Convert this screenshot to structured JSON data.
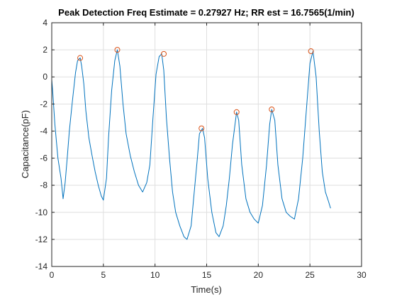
{
  "colors": {
    "line": "#0072BD",
    "peak_marker": "#D95319",
    "grid": "#dfdfdf",
    "axes": "#262626",
    "background": "#ffffff"
  },
  "chart_data": {
    "type": "line",
    "title": "Peak Detection Freq Estimate = 0.27927 Hz; RR est = 16.7565(1/min)",
    "xlabel": "Time(s)",
    "ylabel": "Capacitance(pF)",
    "xlim": [
      0,
      30
    ],
    "ylim": [
      -14,
      4
    ],
    "x_ticks": [
      0,
      5,
      10,
      15,
      20,
      25,
      30
    ],
    "y_ticks": [
      -14,
      -12,
      -10,
      -8,
      -6,
      -4,
      -2,
      0,
      2,
      4
    ],
    "grid": true,
    "legend": "none",
    "series": [
      {
        "marker": "line",
        "x": [
          0,
          0.1,
          0.3,
          0.6,
          0.9,
          1.1,
          1.3,
          1.5,
          1.7,
          2.0,
          2.3,
          2.5,
          2.75,
          2.9,
          3.1,
          3.3,
          3.6,
          3.9,
          4.2,
          4.5,
          4.8,
          5.0,
          5.3,
          5.5,
          5.8,
          6.1,
          6.35,
          6.6,
          6.9,
          7.2,
          7.6,
          8.0,
          8.4,
          8.8,
          9.2,
          9.5,
          9.8,
          10.1,
          10.4,
          10.65,
          10.85,
          11.1,
          11.4,
          11.7,
          12.0,
          12.4,
          12.8,
          13.1,
          13.5,
          13.8,
          14.1,
          14.3,
          14.6,
          14.8,
          15.1,
          15.5,
          15.9,
          16.2,
          16.6,
          16.9,
          17.2,
          17.5,
          17.9,
          18.1,
          18.4,
          18.8,
          19.2,
          19.6,
          20.0,
          20.4,
          20.8,
          21.1,
          21.3,
          21.6,
          21.9,
          22.3,
          22.7,
          23.1,
          23.5,
          23.9,
          24.3,
          24.7,
          25.0,
          25.3,
          25.6,
          25.9,
          26.2,
          26.5,
          26.8,
          27.0
        ],
        "y": [
          -0.2,
          -1.2,
          -3.5,
          -6.0,
          -7.5,
          -9.0,
          -7.8,
          -6.0,
          -4.0,
          -1.8,
          0.3,
          1.2,
          1.4,
          0.8,
          -0.5,
          -2.5,
          -4.5,
          -5.8,
          -7.0,
          -8.0,
          -8.8,
          -9.1,
          -7.5,
          -4.5,
          -1.0,
          1.2,
          2.0,
          0.8,
          -2.0,
          -4.2,
          -5.8,
          -7.0,
          -8.0,
          -8.5,
          -7.8,
          -6.5,
          -3.0,
          0.2,
          1.5,
          1.7,
          0.5,
          -3.0,
          -6.0,
          -8.5,
          -10.0,
          -11.0,
          -11.8,
          -12.0,
          -11.0,
          -8.5,
          -6.0,
          -4.2,
          -3.8,
          -4.5,
          -7.5,
          -10.0,
          -11.5,
          -11.8,
          -11.0,
          -9.5,
          -7.5,
          -5.0,
          -2.6,
          -3.2,
          -6.5,
          -9.0,
          -10.0,
          -10.5,
          -10.8,
          -9.5,
          -6.5,
          -3.5,
          -2.4,
          -3.2,
          -6.5,
          -9.0,
          -10.0,
          -10.3,
          -10.5,
          -9.0,
          -6.0,
          -2.0,
          1.0,
          1.9,
          0.0,
          -4.0,
          -7.0,
          -8.5,
          -9.2,
          -9.7
        ]
      },
      {
        "marker": "circle",
        "x": [
          2.75,
          6.35,
          10.85,
          14.5,
          17.9,
          21.3,
          25.1
        ],
        "y": [
          1.4,
          2.0,
          1.7,
          -3.8,
          -2.6,
          -2.4,
          1.9
        ]
      }
    ]
  }
}
